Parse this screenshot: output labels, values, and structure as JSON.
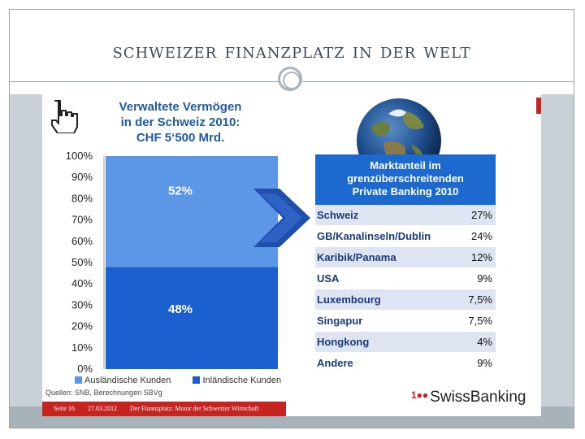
{
  "slide": {
    "title": "Schweizer Finanzplatz in der Welt"
  },
  "left_chart": {
    "title_lines": [
      "Verwaltete Vermögen",
      "in der Schweiz 2010:",
      "CHF 5‘500 Mrd."
    ],
    "legend": [
      {
        "label": "Ausländische Kunden",
        "color": "#5b97e6"
      },
      {
        "label": "Inländische Kunden",
        "color": "#1c5fcf"
      }
    ],
    "sources": "Quellen: SNB, Berechnungen SBVg",
    "footer": {
      "page": "Seite 16",
      "date": "27.03.2012",
      "text": "Der Finanzplatz: Motor der Schweizer Wirtschaft"
    }
  },
  "chart_data": {
    "type": "bar",
    "stacked": true,
    "categories": [
      ""
    ],
    "series": [
      {
        "name": "Inländische Kunden",
        "values": [
          48
        ],
        "label": "48%",
        "color": "#1c5fcf"
      },
      {
        "name": "Ausländische Kunden",
        "values": [
          52
        ],
        "label": "52%",
        "color": "#5b97e6"
      }
    ],
    "y_ticks": [
      "0%",
      "10%",
      "20%",
      "30%",
      "40%",
      "50%",
      "60%",
      "70%",
      "80%",
      "90%",
      "100%"
    ],
    "ylim": [
      0,
      100
    ],
    "grid": false,
    "legend": "bottom"
  },
  "market_share": {
    "title_lines": [
      "Marktanteil im",
      "grenzüberschreitenden",
      "Private Banking 2010"
    ],
    "rows": [
      {
        "label": "Schweiz",
        "value": "27%"
      },
      {
        "label": "GB/Kanalinseln/Dublin",
        "value": "24%"
      },
      {
        "label": "Karibik/Panama",
        "value": "12%"
      },
      {
        "label": "USA",
        "value": "9%"
      },
      {
        "label": "Luxembourg",
        "value": "7,5%"
      },
      {
        "label": "Singapur",
        "value": "7,5%"
      },
      {
        "label": "Hongkong",
        "value": "4%"
      },
      {
        "label": "Andere",
        "value": "9%"
      }
    ],
    "header_color": "#1c6ad0"
  },
  "logo": {
    "text": "SwissBanking",
    "dots": "1●●"
  }
}
